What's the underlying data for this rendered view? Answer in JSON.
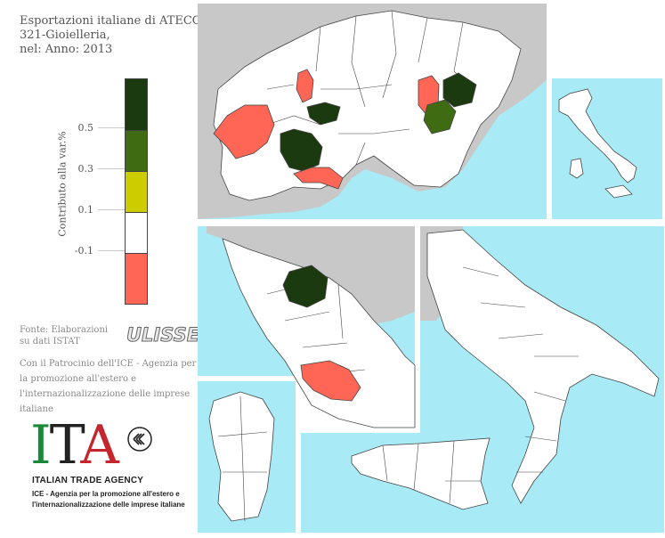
{
  "title": {
    "line1": "Esportazioni italiane di ATECO:",
    "line2": "321-Gioielleria,",
    "line3": "nel: Anno: 2013"
  },
  "legend": {
    "label": "Contributo alla var.%",
    "ticks": [
      "0.5",
      "0.3",
      "0.1",
      "-0.1"
    ],
    "colors": [
      "#1c3a0f",
      "#3f6b12",
      "#cccc00",
      "#ffffff",
      "#ff6655"
    ]
  },
  "credits": {
    "fonte_line1": "Fonte: Elaborazioni",
    "fonte_line2": "su dati ISTAT",
    "ulisse": "ULISSE",
    "patrocinio": "Con il Patrocinio dell'ICE - Agenzia per la promozione all'estero e l'internazionalizzazione delle imprese italiane"
  },
  "logo": {
    "letter_i": "I",
    "letter_t": "T",
    "letter_a": "A",
    "agency": "ITALIAN TRADE AGENCY",
    "sub_line1": "ICE - Agenzia per la promozione all'estero e",
    "sub_line2": "l'internazionalizzazione delle imprese italiane"
  },
  "map": {
    "sea_color": "#a8eaf5",
    "land_color": "#ffffff",
    "foreign_color": "#c8c8c8",
    "highlighted_regions": [
      {
        "region": "Piemonte",
        "category": "-0.1",
        "color": "#ff6655"
      },
      {
        "region": "Valle d'Aosta",
        "category": "-0.1",
        "color": "#ff6655"
      },
      {
        "region": "Alessandria",
        "category": "0.5",
        "color": "#1c3a0f"
      },
      {
        "region": "Liguria",
        "category": "-0.1",
        "color": "#ff6655"
      },
      {
        "region": "Lombardia nord",
        "category": "0.5",
        "color": "#1c3a0f"
      },
      {
        "region": "Veneto ovest",
        "category": "-0.1",
        "color": "#ff6655"
      },
      {
        "region": "Vicenza",
        "category": "0.5",
        "color": "#1c3a0f"
      },
      {
        "region": "Padova",
        "category": "0.3",
        "color": "#3f6b12"
      },
      {
        "region": "Arezzo",
        "category": "0.5",
        "color": "#1c3a0f"
      },
      {
        "region": "Roma",
        "category": "-0.1",
        "color": "#ff6655"
      }
    ]
  }
}
